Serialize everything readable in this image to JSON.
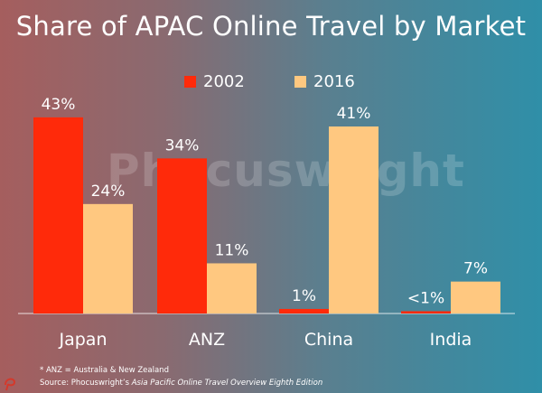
{
  "colors": {
    "s2002": "#ff2a0a",
    "s2016": "#ffc880"
  },
  "watermark": "Phocuswright",
  "footnote": "* ANZ = Australia & New Zealand",
  "source_prefix": "Source: Phocuswright’s ",
  "source_title": "Asia Pacific Online Travel Overview Eighth Edition",
  "chart_data": {
    "type": "bar",
    "title": "Share of APAC Online Travel by Market",
    "categories": [
      "Japan",
      "ANZ",
      "China",
      "India"
    ],
    "series": [
      {
        "name": "2002",
        "values": [
          43,
          34,
          1,
          0.5
        ],
        "labels": [
          "43%",
          "34%",
          "1%",
          "<1%"
        ]
      },
      {
        "name": "2016",
        "values": [
          24,
          11,
          41,
          7
        ],
        "labels": [
          "24%",
          "11%",
          "41%",
          "7%"
        ]
      }
    ],
    "ylim": [
      0,
      45
    ],
    "grid": false,
    "legend": "top-center"
  }
}
